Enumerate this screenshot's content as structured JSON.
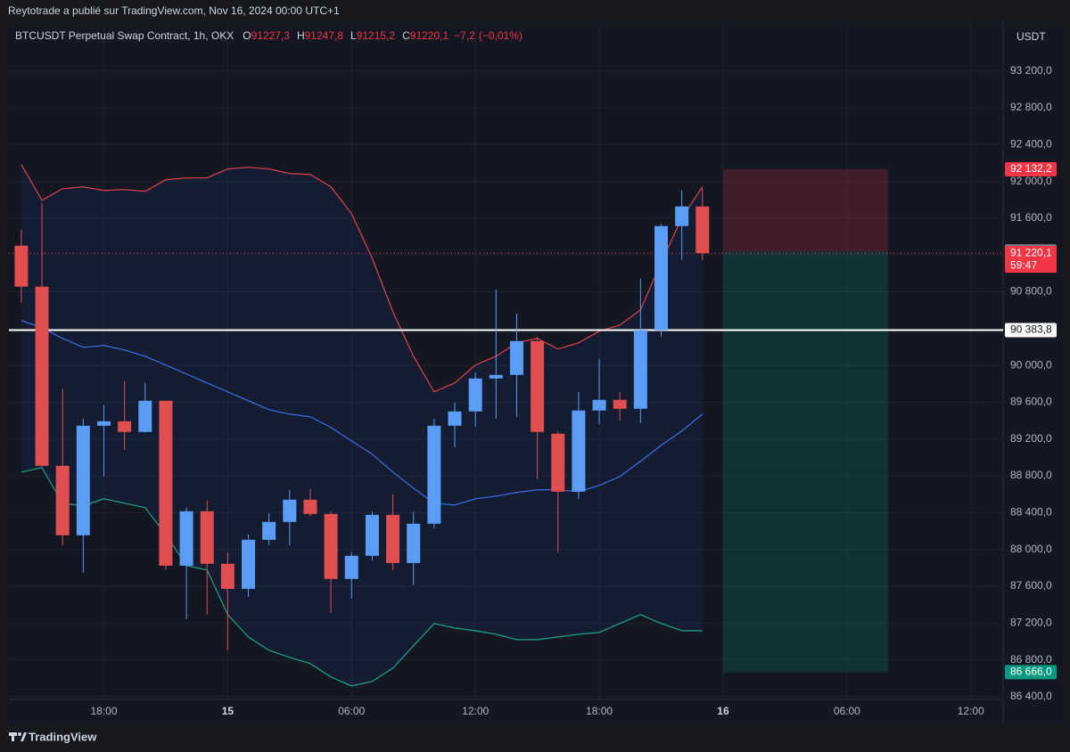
{
  "chart_data": {
    "type": "candlestick",
    "attribution": "Reytotrade a publié sur TradingView.com, Nov 16, 2024 00:00 UTC+1",
    "title": "BTCUSDT Perpetual Swap Contract, 1h, OKX",
    "ohlc_legend": [
      {
        "letter": "O",
        "value": 91227.3,
        "label": "91227,3"
      },
      {
        "letter": "H",
        "value": 91247.8,
        "label": "91247,8"
      },
      {
        "letter": "L",
        "value": 91215.2,
        "label": "91215,2"
      },
      {
        "letter": "C",
        "value": 91220.1,
        "label": "91220,1"
      }
    ],
    "change": {
      "value": -7.2,
      "label": "−7,2"
    },
    "change_pct": {
      "value": -0.01,
      "label": "(−0,01%)"
    },
    "currency": "USDT",
    "brand": "TradingView",
    "up_color": "#5b9cf6",
    "down_color": "#e04e50",
    "x": [
      "2024-11-14 14:00",
      "2024-11-14 15:00",
      "2024-11-14 16:00",
      "2024-11-14 17:00",
      "2024-11-14 18:00",
      "2024-11-14 19:00",
      "2024-11-14 20:00",
      "2024-11-14 21:00",
      "2024-11-14 22:00",
      "2024-11-14 23:00",
      "2024-11-15 00:00",
      "2024-11-15 01:00",
      "2024-11-15 02:00",
      "2024-11-15 03:00",
      "2024-11-15 04:00",
      "2024-11-15 05:00",
      "2024-11-15 06:00",
      "2024-11-15 07:00",
      "2024-11-15 08:00",
      "2024-11-15 09:00",
      "2024-11-15 10:00",
      "2024-11-15 11:00",
      "2024-11-15 12:00",
      "2024-11-15 13:00",
      "2024-11-15 14:00",
      "2024-11-15 15:00",
      "2024-11-15 16:00",
      "2024-11-15 17:00",
      "2024-11-15 18:00",
      "2024-11-15 19:00",
      "2024-11-15 20:00",
      "2024-11-15 21:00",
      "2024-11-15 22:00",
      "2024-11-15 23:00"
    ],
    "open": [
      91302,
      90856,
      88909,
      88154,
      89345,
      89393,
      89277,
      89616,
      87824,
      88415,
      87844,
      87572,
      88105,
      88299,
      88541,
      88386,
      87679,
      87931,
      88376,
      87853,
      88280,
      89345,
      89500,
      89858,
      89897,
      90265,
      89258,
      88628,
      89510,
      89626,
      89529,
      90384,
      91515,
      91728
    ],
    "high": [
      91476,
      91766,
      89742,
      89422,
      89568,
      89829,
      89810,
      89620,
      88454,
      88531,
      87970,
      88163,
      88396,
      88648,
      88660,
      88410,
      87970,
      88410,
      88599,
      88410,
      89422,
      89597,
      89926,
      90827,
      90565,
      90310,
      89280,
      89713,
      90071,
      89713,
      90943,
      91535,
      91902,
      91921
    ],
    "low": [
      90682,
      88900,
      88047,
      87747,
      88793,
      89083,
      89270,
      87776,
      87243,
      87292,
      86904,
      87485,
      88050,
      88047,
      88360,
      87311,
      87466,
      87880,
      87776,
      87611,
      88230,
      89112,
      89335,
      89422,
      89442,
      88764,
      87970,
      88551,
      89364,
      89403,
      89374,
      90316,
      91147,
      91147
    ],
    "close": [
      90856,
      88909,
      88154,
      89345,
      89393,
      89277,
      89616,
      87824,
      88415,
      87844,
      87572,
      88105,
      88299,
      88541,
      88386,
      87679,
      87931,
      88376,
      87853,
      88280,
      89345,
      89500,
      89858,
      89897,
      90265,
      89277,
      88628,
      89510,
      89626,
      89529,
      90384,
      91515,
      91728,
      91220.1
    ],
    "bands": [
      {
        "color": "#e0424f",
        "values": [
          92183,
          91796,
          91921,
          91941,
          91902,
          91912,
          91892,
          92018,
          92038,
          92038,
          92135,
          92154,
          92135,
          92086,
          92076,
          91941,
          91650,
          91166,
          90585,
          90100,
          89713,
          89810,
          90004,
          90100,
          90246,
          90294,
          90178,
          90246,
          90372,
          90439,
          90604,
          91118,
          91602,
          91941
        ]
      },
      {
        "color": "#3d6fe6",
        "values": [
          90488,
          90410,
          90294,
          90197,
          90217,
          90168,
          90100,
          90004,
          89907,
          89810,
          89713,
          89616,
          89519,
          89471,
          89442,
          89326,
          89180,
          89035,
          88841,
          88667,
          88502,
          88483,
          88551,
          88580,
          88619,
          88648,
          88648,
          88628,
          88696,
          88793,
          88958,
          89132,
          89287,
          89471
        ]
      },
      {
        "color": "#1fa38a",
        "values": [
          88841,
          88890,
          88502,
          88473,
          88551,
          88502,
          88454,
          88163,
          87824,
          87776,
          87292,
          87049,
          86904,
          86827,
          86759,
          86614,
          86517,
          86565,
          86710,
          86953,
          87195,
          87146,
          87117,
          87078,
          87020,
          87020,
          87049,
          87078,
          87098,
          87195,
          87292,
          87195,
          87117,
          87117
        ]
      }
    ],
    "band_fill": "rgba(41,98,255,0.07)",
    "position": {
      "start": "2024-11-16 00:00",
      "end": "2024-11-16 08:00",
      "stop": {
        "value": 92132.2,
        "label": "92 132,2",
        "color": "#f23645"
      },
      "entry": {
        "value": 91240.3,
        "label": "91 240,3",
        "color": "#787b86"
      },
      "target": {
        "value": 86666.0,
        "label": "86 666,0",
        "color": "#089981"
      }
    },
    "current_price": {
      "value": 91220.1,
      "label": "91 220,1",
      "countdown": "59:47",
      "color": "#f23645"
    },
    "horizontal_line": {
      "value": 90383.8,
      "label": "90 383,8",
      "color": "#ffffff"
    },
    "xlim": [
      "2024-11-14 13:24",
      "2024-11-16 13:34"
    ],
    "xticks": [
      {
        "value": "2024-11-14 18:00",
        "label": "18:00"
      },
      {
        "value": "2024-11-15 00:00",
        "label": "15"
      },
      {
        "value": "2024-11-15 06:00",
        "label": "06:00"
      },
      {
        "value": "2024-11-15 12:00",
        "label": "12:00"
      },
      {
        "value": "2024-11-15 18:00",
        "label": "18:00"
      },
      {
        "value": "2024-11-16 00:00",
        "label": "16"
      },
      {
        "value": "2024-11-16 06:00",
        "label": "06:00"
      },
      {
        "value": "2024-11-16 12:00",
        "label": "12:00"
      }
    ],
    "ylim": [
      86370,
      93720
    ],
    "yticks": [
      {
        "value": 86400,
        "label": "86 400,0"
      },
      {
        "value": 86800,
        "label": "86 800,0"
      },
      {
        "value": 87200,
        "label": "87 200,0"
      },
      {
        "value": 87600,
        "label": "87 600,0"
      },
      {
        "value": 88000,
        "label": "88 000,0"
      },
      {
        "value": 88400,
        "label": "88 400,0"
      },
      {
        "value": 88800,
        "label": "88 800,0"
      },
      {
        "value": 89200,
        "label": "89 200,0"
      },
      {
        "value": 89600,
        "label": "89 600,0"
      },
      {
        "value": 90000,
        "label": "90 000,0"
      },
      {
        "value": 90400,
        "label": "90 400,0"
      },
      {
        "value": 90800,
        "label": "90 800,0"
      },
      {
        "value": 91200,
        "label": "91 200,0"
      },
      {
        "value": 91600,
        "label": "91 600,0"
      },
      {
        "value": 92000,
        "label": "92 000,0"
      },
      {
        "value": 92400,
        "label": "92 400,0"
      },
      {
        "value": 92800,
        "label": "92 800,0"
      },
      {
        "value": 93200,
        "label": "93 200,0"
      }
    ],
    "grid": true
  }
}
